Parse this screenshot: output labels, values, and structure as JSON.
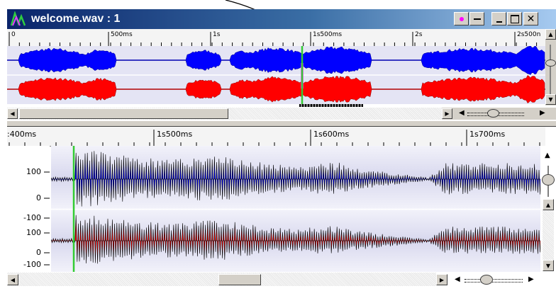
{
  "window": {
    "title": "welcome.wav : 1",
    "icon": "waveform-app-icon",
    "buttons": [
      "record-icon",
      "minimize-icon",
      "maximize-icon",
      "close-icon"
    ]
  },
  "overview": {
    "ruler_labels": [
      "0",
      "500ms",
      "1s",
      "1s500ms",
      "2s",
      "2s500n"
    ]
  },
  "detail": {
    "ruler_labels": [
      ":400ms",
      "1s500ms",
      "1s600ms",
      "1s700ms"
    ],
    "channel1_ylabels": [
      "100",
      "0",
      "-100"
    ],
    "channel2_ylabels": [
      "100",
      "0",
      "-100"
    ]
  },
  "colors": {
    "channel_left": "#0000ff",
    "channel_right": "#ff0000",
    "cursor": "#33cc33",
    "title_start": "#0a246a",
    "title_end": "#a6caf0"
  }
}
